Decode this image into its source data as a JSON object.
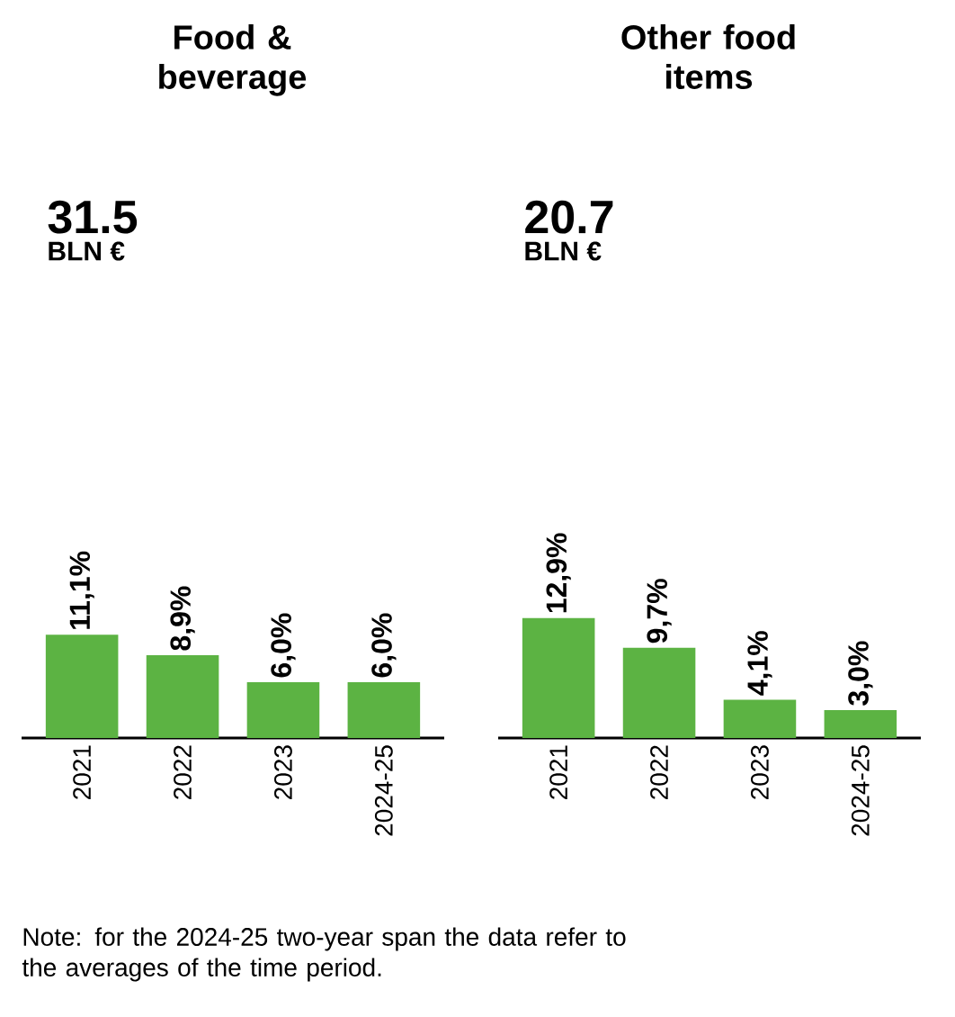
{
  "chart_data": [
    {
      "type": "bar",
      "title": "Food & beverage",
      "categories": [
        "2021",
        "2022",
        "2023",
        "2024-25"
      ],
      "values": [
        11.1,
        8.9,
        6.0,
        6.0
      ],
      "value_labels": [
        "11,1%",
        "8,9%",
        "6,0%",
        "6,0%"
      ],
      "color": "#5cb343",
      "annotations": [
        "31.5",
        "BLN €",
        "Note: for the 2024-25 two-year span the data refer to the averages of the time period."
      ]
    },
    {
      "type": "bar",
      "title": "Other food items",
      "categories": [
        "2021",
        "2022",
        "2023",
        "2024-25"
      ],
      "values": [
        12.9,
        9.7,
        4.1,
        3.0
      ],
      "value_labels": [
        "12,9%",
        "9,7%",
        "4,1%",
        "3,0%"
      ],
      "color": "#5cb343",
      "annotations": [
        "20.7",
        "BLN €"
      ]
    }
  ]
}
